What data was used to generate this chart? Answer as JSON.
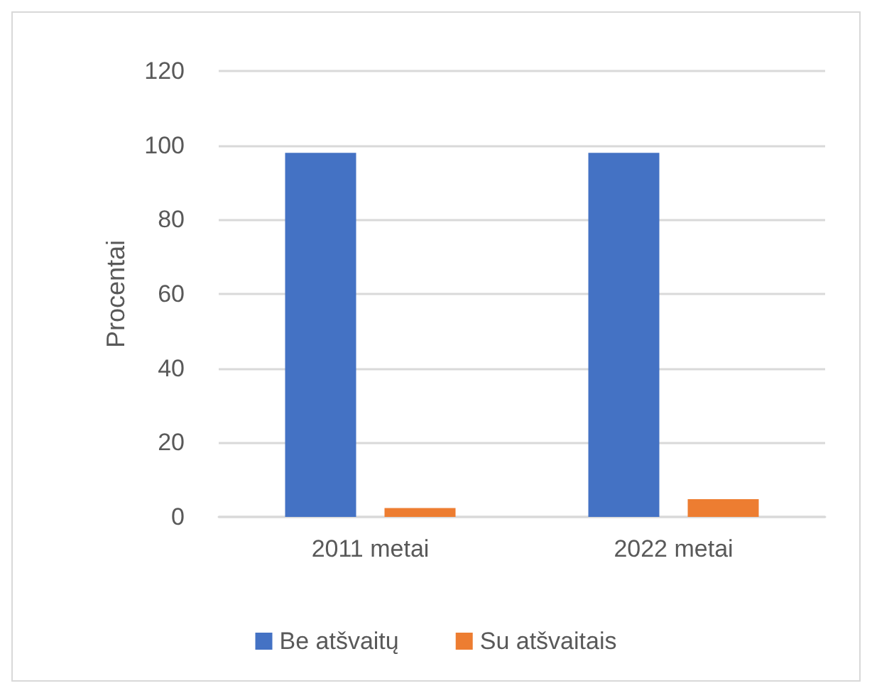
{
  "chart_data": {
    "type": "bar",
    "ylabel": "Procentai",
    "categories": [
      "2011 metai",
      "2022 metai"
    ],
    "series": [
      {
        "name": "Be atšvaitų",
        "color": "#4472c4",
        "values": [
          98,
          98
        ]
      },
      {
        "name": "Su atšvaitais",
        "color": "#ed7d31",
        "values": [
          2.4,
          4.8
        ]
      }
    ],
    "ylim": [
      0,
      120
    ],
    "yticks": [
      0,
      20,
      40,
      60,
      80,
      100,
      120
    ],
    "grid": "y",
    "legend": "bottom"
  }
}
